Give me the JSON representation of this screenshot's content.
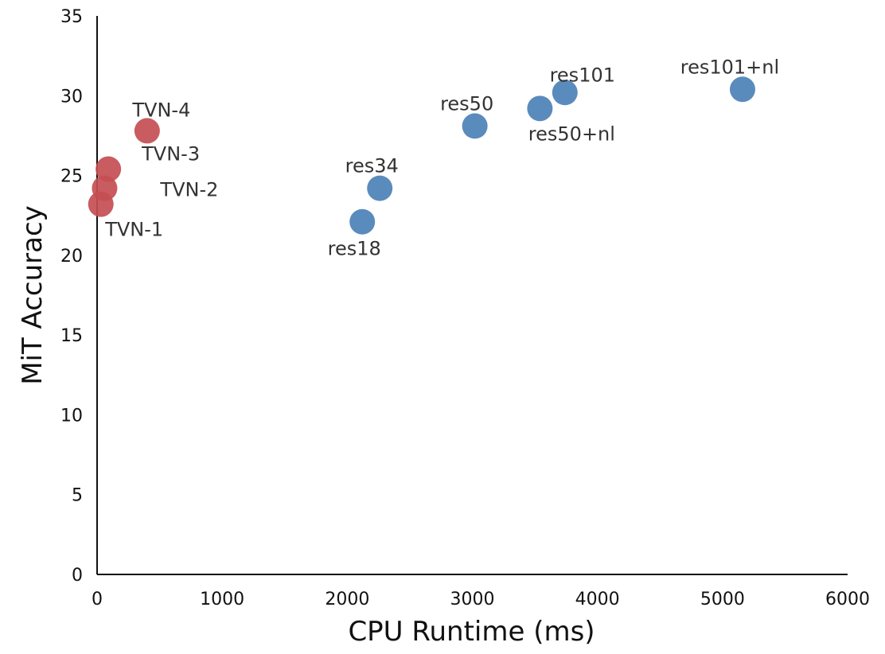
{
  "chart_data": {
    "type": "scatter",
    "xlabel": "CPU Runtime (ms)",
    "ylabel": "MiT Accuracy",
    "xlim": [
      0,
      6000
    ],
    "ylim": [
      0,
      35
    ],
    "xticks": [
      "0",
      "1000",
      "2000",
      "3000",
      "4000",
      "5000",
      "6000"
    ],
    "yticks": [
      "0",
      "5",
      "10",
      "15",
      "20",
      "25",
      "30",
      "35"
    ],
    "grid": false,
    "legend": "none",
    "colors": {
      "tvn": "#c44e52",
      "resnet": "#4c81b7"
    },
    "points": [
      {
        "label": "TVN-1",
        "x": 30,
        "y": 23.2,
        "group": "tvn"
      },
      {
        "label": "TVN-2",
        "x": 60,
        "y": 24.2,
        "group": "tvn"
      },
      {
        "label": "TVN-3",
        "x": 90,
        "y": 25.4,
        "group": "tvn"
      },
      {
        "label": "TVN-4",
        "x": 400,
        "y": 27.8,
        "group": "tvn"
      },
      {
        "label": "res18",
        "x": 2120,
        "y": 22.1,
        "group": "resnet"
      },
      {
        "label": "res34",
        "x": 2260,
        "y": 24.2,
        "group": "resnet"
      },
      {
        "label": "res50",
        "x": 3020,
        "y": 28.1,
        "group": "resnet"
      },
      {
        "label": "res50+nl",
        "x": 3540,
        "y": 29.2,
        "group": "resnet"
      },
      {
        "label": "res101",
        "x": 3740,
        "y": 30.2,
        "group": "resnet"
      },
      {
        "label": "res101+nl",
        "x": 5160,
        "y": 30.4,
        "group": "resnet"
      }
    ]
  }
}
